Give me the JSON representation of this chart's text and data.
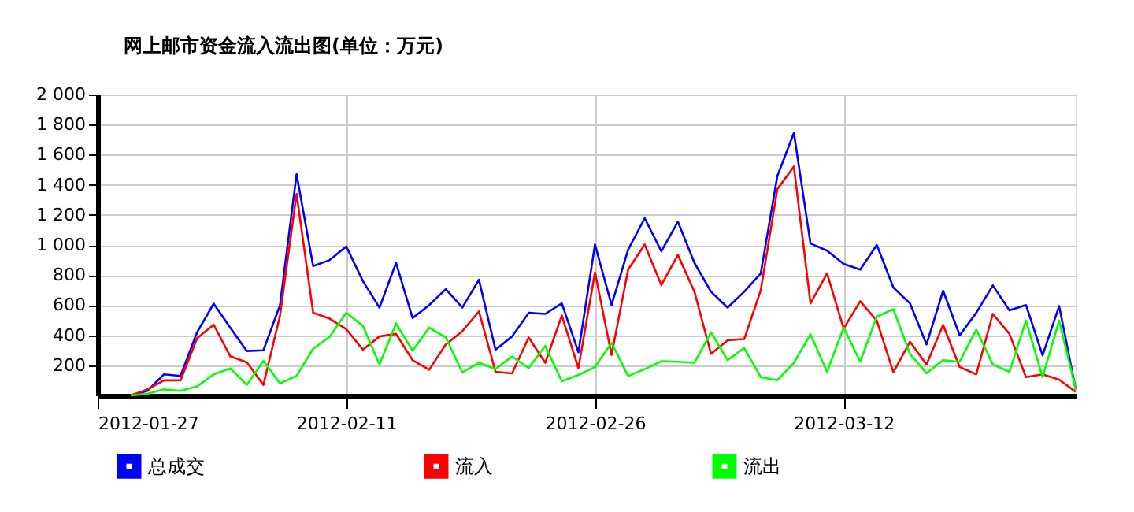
{
  "chart_data": {
    "type": "line",
    "title": "网上邮市资金流入流出图(单位：万元)",
    "x": [
      "2012-01-29",
      "2012-01-30",
      "2012-01-31",
      "2012-02-01",
      "2012-02-02",
      "2012-02-03",
      "2012-02-04",
      "2012-02-05",
      "2012-02-06",
      "2012-02-07",
      "2012-02-08",
      "2012-02-09",
      "2012-02-10",
      "2012-02-11",
      "2012-02-12",
      "2012-02-13",
      "2012-02-14",
      "2012-02-15",
      "2012-02-16",
      "2012-02-17",
      "2012-02-18",
      "2012-02-19",
      "2012-02-20",
      "2012-02-21",
      "2012-02-22",
      "2012-02-23",
      "2012-02-24",
      "2012-02-25",
      "2012-02-26",
      "2012-02-27",
      "2012-02-28",
      "2012-02-29",
      "2012-03-01",
      "2012-03-02",
      "2012-03-03",
      "2012-03-04",
      "2012-03-05",
      "2012-03-06",
      "2012-03-07",
      "2012-03-08",
      "2012-03-09",
      "2012-03-10",
      "2012-03-11",
      "2012-03-12",
      "2012-03-13",
      "2012-03-14",
      "2012-03-15",
      "2012-03-16",
      "2012-03-17",
      "2012-03-18",
      "2012-03-19",
      "2012-03-20",
      "2012-03-21",
      "2012-03-22",
      "2012-03-23",
      "2012-03-24",
      "2012-03-25",
      "2012-03-26"
    ],
    "series": [
      {
        "name": "总成交",
        "color": "#0000ff",
        "values": [
          0,
          30,
          140,
          130,
          420,
          610,
          450,
          295,
          300,
          600,
          1470,
          860,
          900,
          990,
          760,
          584,
          881,
          514,
          601,
          706,
          584,
          769,
          304,
          392,
          549,
          542,
          612,
          287,
          1003,
          601,
          969,
          1178,
          958,
          1154,
          881,
          689,
          584,
          689,
          811,
          1458,
          1745,
          1010,
          962,
          874,
          836,
          1000,
          717,
          612,
          339,
          696,
          399,
          549,
          731,
          566,
          601,
          266,
          594,
          40
        ]
      },
      {
        "name": "流入",
        "color": "#ff0000",
        "values": [
          0,
          40,
          100,
          100,
          380,
          470,
          260,
          220,
          70,
          530,
          1340,
          550,
          510,
          440,
          304,
          392,
          409,
          234,
          171,
          339,
          427,
          559,
          157,
          147,
          385,
          217,
          531,
          182,
          818,
          269,
          836,
          1003,
          734,
          934,
          689,
          276,
          367,
          374,
          699,
          1371,
          1521,
          612,
          811,
          444,
          626,
          497,
          154,
          357,
          206,
          469,
          189,
          140,
          542,
          409,
          122,
          140,
          105,
          24
        ]
      },
      {
        "name": "流出",
        "color": "#00ff00",
        "values": [
          0,
          10,
          40,
          30,
          60,
          140,
          180,
          70,
          230,
          80,
          130,
          310,
          390,
          550,
          462,
          206,
          479,
          297,
          451,
          385,
          154,
          217,
          175,
          259,
          182,
          329,
          94,
          136,
          189,
          350,
          129,
          175,
          227,
          224,
          217,
          420,
          234,
          315,
          122,
          101,
          217,
          406,
          157,
          451,
          224,
          524,
          573,
          276,
          147,
          234,
          224,
          437,
          206,
          157,
          497,
          122,
          497,
          42
        ]
      }
    ],
    "xlim": [
      "2012-01-27",
      "2012-03-26"
    ],
    "xticks": [
      "2012-01-27",
      "2012-02-11",
      "2012-02-26",
      "2012-03-12"
    ],
    "ylim": [
      0,
      2000
    ],
    "yticks": [
      {
        "value": 200,
        "label": "200"
      },
      {
        "value": 400,
        "label": "400"
      },
      {
        "value": 600,
        "label": "600"
      },
      {
        "value": 800,
        "label": "800"
      },
      {
        "value": 1000,
        "label": "1 000"
      },
      {
        "value": 1200,
        "label": "1 200"
      },
      {
        "value": 1400,
        "label": "1 400"
      },
      {
        "value": 1600,
        "label": "1 600"
      },
      {
        "value": 1800,
        "label": "1 800"
      },
      {
        "value": 2000,
        "label": "2 000"
      }
    ],
    "grid": true,
    "legend": "bottom",
    "marker": "none",
    "line_style": "solid"
  }
}
